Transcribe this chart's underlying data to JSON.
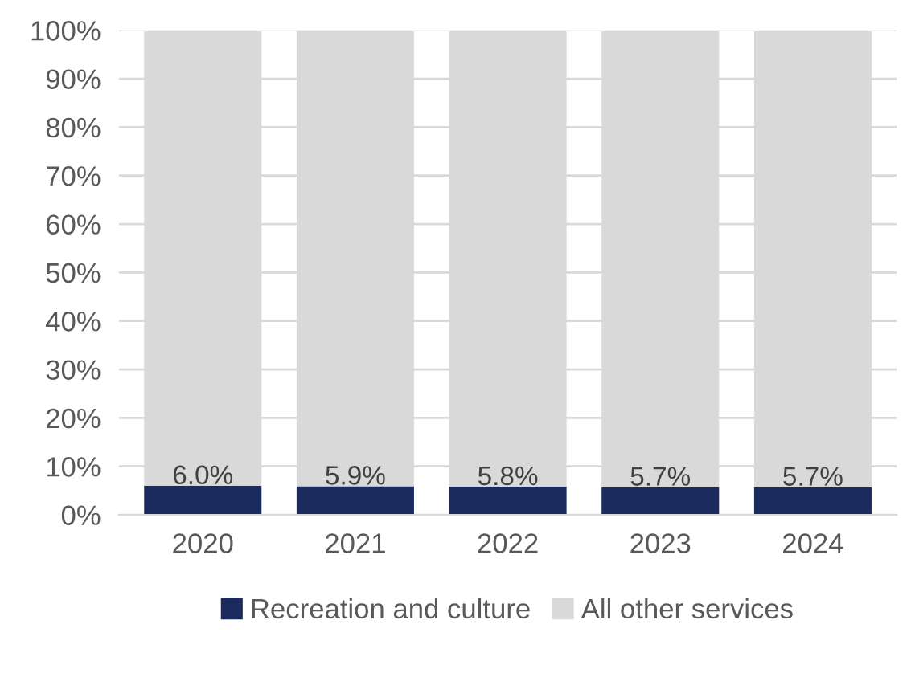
{
  "chart_data": {
    "type": "bar",
    "stacked": true,
    "categories": [
      "2020",
      "2021",
      "2022",
      "2023",
      "2024"
    ],
    "series": [
      {
        "name": "Recreation and culture",
        "color": "#1b2b5e",
        "values": [
          6.0,
          5.9,
          5.8,
          5.7,
          5.7
        ],
        "value_labels": [
          "6.0%",
          "5.9%",
          "5.8%",
          "5.7%",
          "5.7%"
        ]
      },
      {
        "name": "All other services",
        "color": "#d9d9d9",
        "values": [
          94.0,
          94.1,
          94.2,
          94.3,
          94.3
        ]
      }
    ],
    "ylim": [
      0,
      100
    ],
    "yticks": [
      {
        "value": 0,
        "label": "0%"
      },
      {
        "value": 10,
        "label": "10%"
      },
      {
        "value": 20,
        "label": "20%"
      },
      {
        "value": 30,
        "label": "30%"
      },
      {
        "value": 40,
        "label": "40%"
      },
      {
        "value": 50,
        "label": "50%"
      },
      {
        "value": 60,
        "label": "60%"
      },
      {
        "value": 70,
        "label": "70%"
      },
      {
        "value": 80,
        "label": "80%"
      },
      {
        "value": 90,
        "label": "90%"
      },
      {
        "value": 100,
        "label": "100%"
      }
    ],
    "grid": "y",
    "legend": "bottom"
  }
}
